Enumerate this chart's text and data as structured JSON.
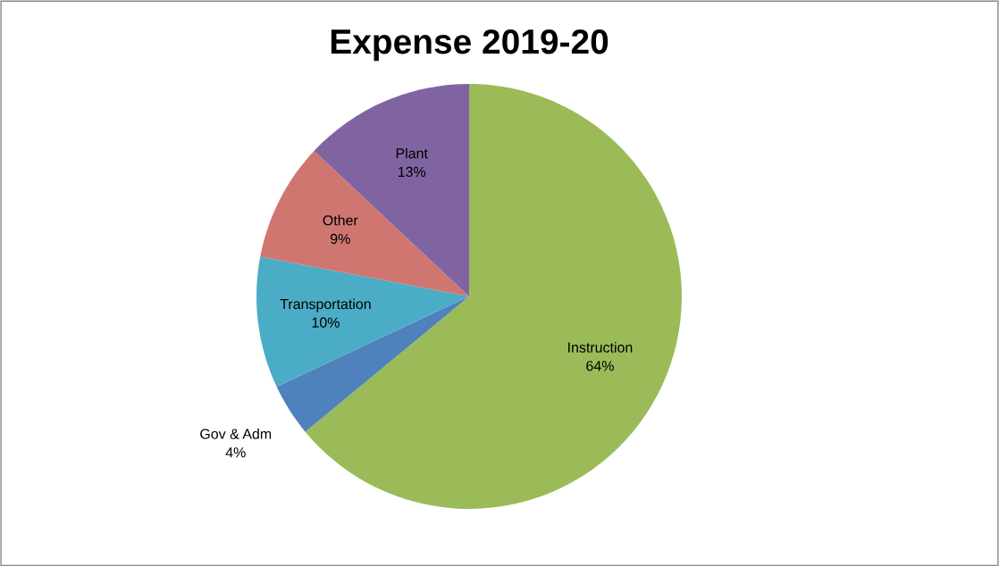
{
  "chart_data": {
    "type": "pie",
    "title": "Expense 2019-20",
    "categories": [
      "Instruction",
      "Gov & Adm",
      "Transportation",
      "Other",
      "Plant"
    ],
    "values": [
      64,
      4,
      10,
      9,
      13
    ],
    "value_labels": [
      "64%",
      "4%",
      "10%",
      "9%",
      "13%"
    ],
    "colors": [
      "#9bbb59",
      "#4f81bd",
      "#4bacc6",
      "#d07670",
      "#8064a2"
    ],
    "legend": false
  }
}
